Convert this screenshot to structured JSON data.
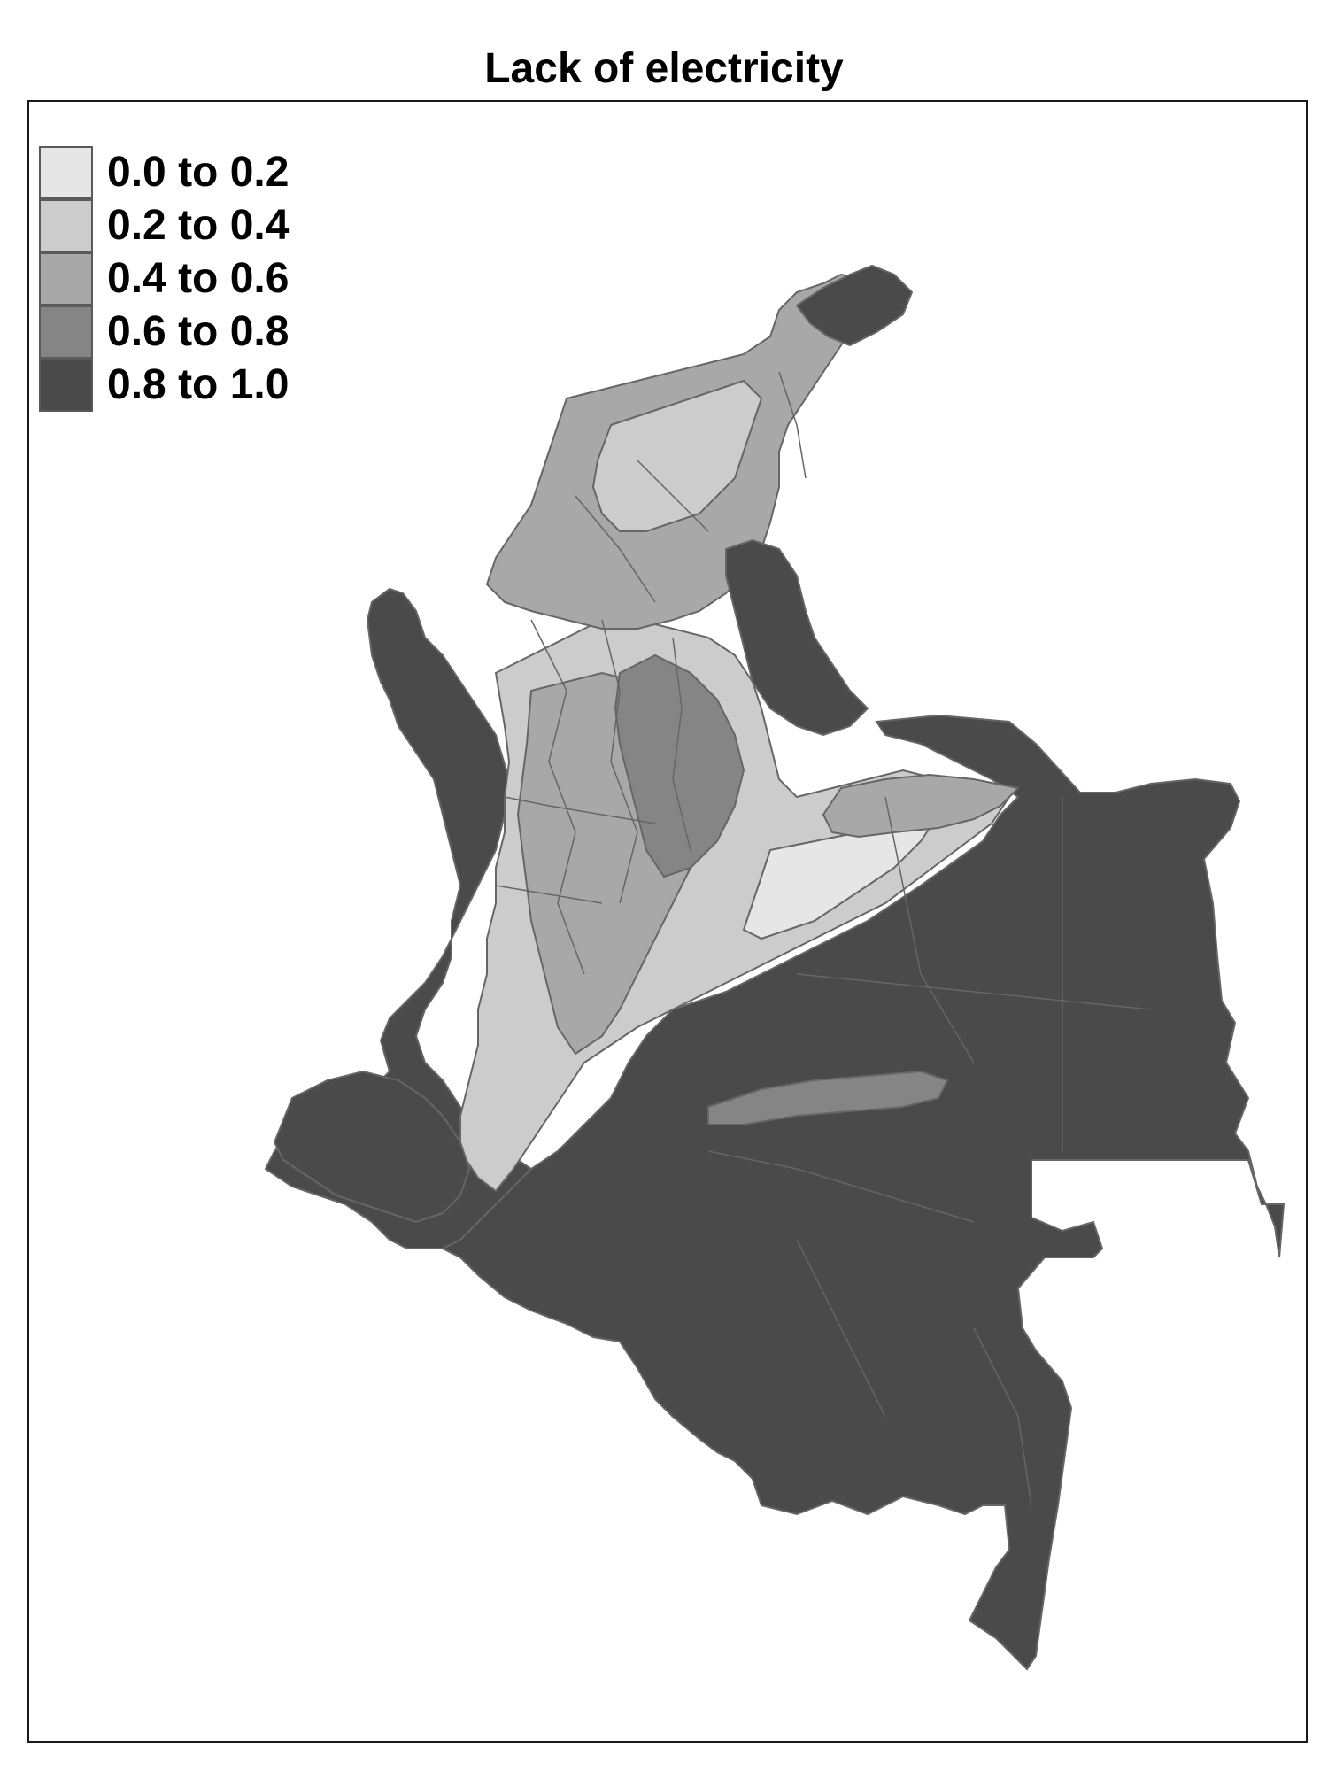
{
  "title": "Lack of electricity",
  "legend": {
    "items": [
      {
        "label": "0.0 to 0.2",
        "color": "#e6e6e6"
      },
      {
        "label": "0.2 to 0.4",
        "color": "#cccccc"
      },
      {
        "label": "0.4 to 0.6",
        "color": "#a8a8a8"
      },
      {
        "label": "0.6 to 0.8",
        "color": "#858585"
      },
      {
        "label": "0.8 to 1.0",
        "color": "#4a4a4a"
      }
    ],
    "border_color": "#5a5a5a"
  },
  "map": {
    "region_border_color": "#666666",
    "frame_color": "#1a1a1a",
    "background": "#ffffff"
  }
}
